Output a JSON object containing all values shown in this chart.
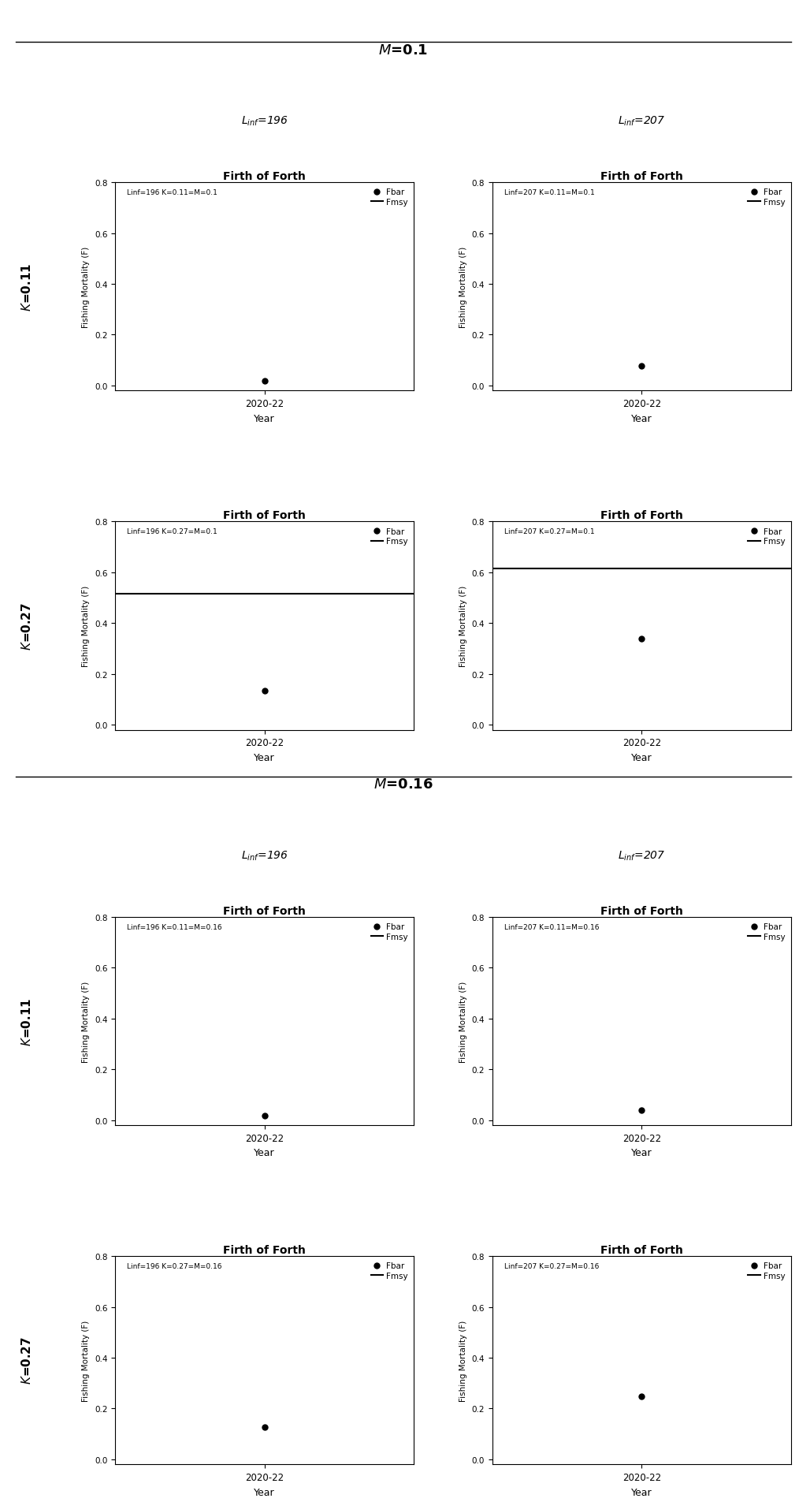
{
  "M_groups": [
    0.1,
    0.16
  ],
  "K_values": [
    "0.11",
    "0.27"
  ],
  "Linf_values": [
    "196",
    "207"
  ],
  "x_label": "Year",
  "x_tick": "2020-22",
  "y_label": "Fishing Mortality (F)",
  "y_lim": [
    -0.02,
    0.8
  ],
  "y_ticks": [
    0.0,
    0.2,
    0.4,
    0.6,
    0.8
  ],
  "fbar_values": {
    "0.1": {
      "0.11": {
        "196": 0.019,
        "207": 0.078
      },
      "0.27": {
        "196": 0.135,
        "207": 0.34
      }
    },
    "0.16": {
      "0.11": {
        "196": 0.019,
        "207": 0.038
      },
      "0.27": {
        "196": 0.128,
        "207": 0.248
      }
    }
  },
  "fmsy_values": {
    "0.1": {
      "0.11": {
        "196": null,
        "207": null
      },
      "0.27": {
        "196": 0.515,
        "207": 0.615
      }
    },
    "0.16": {
      "0.11": {
        "196": null,
        "207": null
      },
      "0.27": {
        "196": null,
        "207": null
      }
    }
  },
  "subplot_title": "Firth of Forth",
  "legend_fbar": "Fbar",
  "legend_fmsy": "Fmsy",
  "M_labels": [
    "0.1",
    "0.16"
  ],
  "K_display": [
    "0.11",
    "0.27"
  ],
  "Linf_display": [
    "196",
    "207"
  ]
}
